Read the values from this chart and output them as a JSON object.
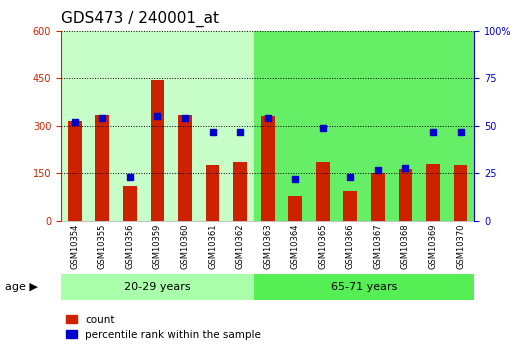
{
  "title": "GDS473 / 240001_at",
  "samples": [
    "GSM10354",
    "GSM10355",
    "GSM10356",
    "GSM10359",
    "GSM10360",
    "GSM10361",
    "GSM10362",
    "GSM10363",
    "GSM10364",
    "GSM10365",
    "GSM10366",
    "GSM10367",
    "GSM10368",
    "GSM10369",
    "GSM10370"
  ],
  "counts": [
    315,
    335,
    110,
    445,
    335,
    175,
    185,
    330,
    80,
    185,
    95,
    150,
    165,
    180,
    175
  ],
  "percentiles": [
    52,
    54,
    23,
    55,
    54,
    47,
    47,
    54,
    22,
    49,
    23,
    27,
    28,
    47,
    47
  ],
  "groups": [
    {
      "label": "20-29 years",
      "start": 0,
      "end": 6
    },
    {
      "label": "65-71 years",
      "start": 7,
      "end": 14
    }
  ],
  "group_bg_colors": [
    "#c8ffc8",
    "#66ee66"
  ],
  "group_bottom_colors": [
    "#aaffaa",
    "#55ee55"
  ],
  "ylim_left": [
    0,
    600
  ],
  "ylim_right": [
    0,
    100
  ],
  "yticks_left": [
    0,
    150,
    300,
    450,
    600
  ],
  "yticks_right": [
    0,
    25,
    50,
    75,
    100
  ],
  "bar_color": "#cc2200",
  "dot_color": "#0000cc",
  "plot_bg_color": "#ffffff",
  "legend_count": "count",
  "legend_pct": "percentile rank within the sample",
  "title_fontsize": 11,
  "tick_fontsize": 7,
  "axis_left_color": "#cc2200",
  "axis_right_color": "#0000cc",
  "bar_width": 0.5
}
